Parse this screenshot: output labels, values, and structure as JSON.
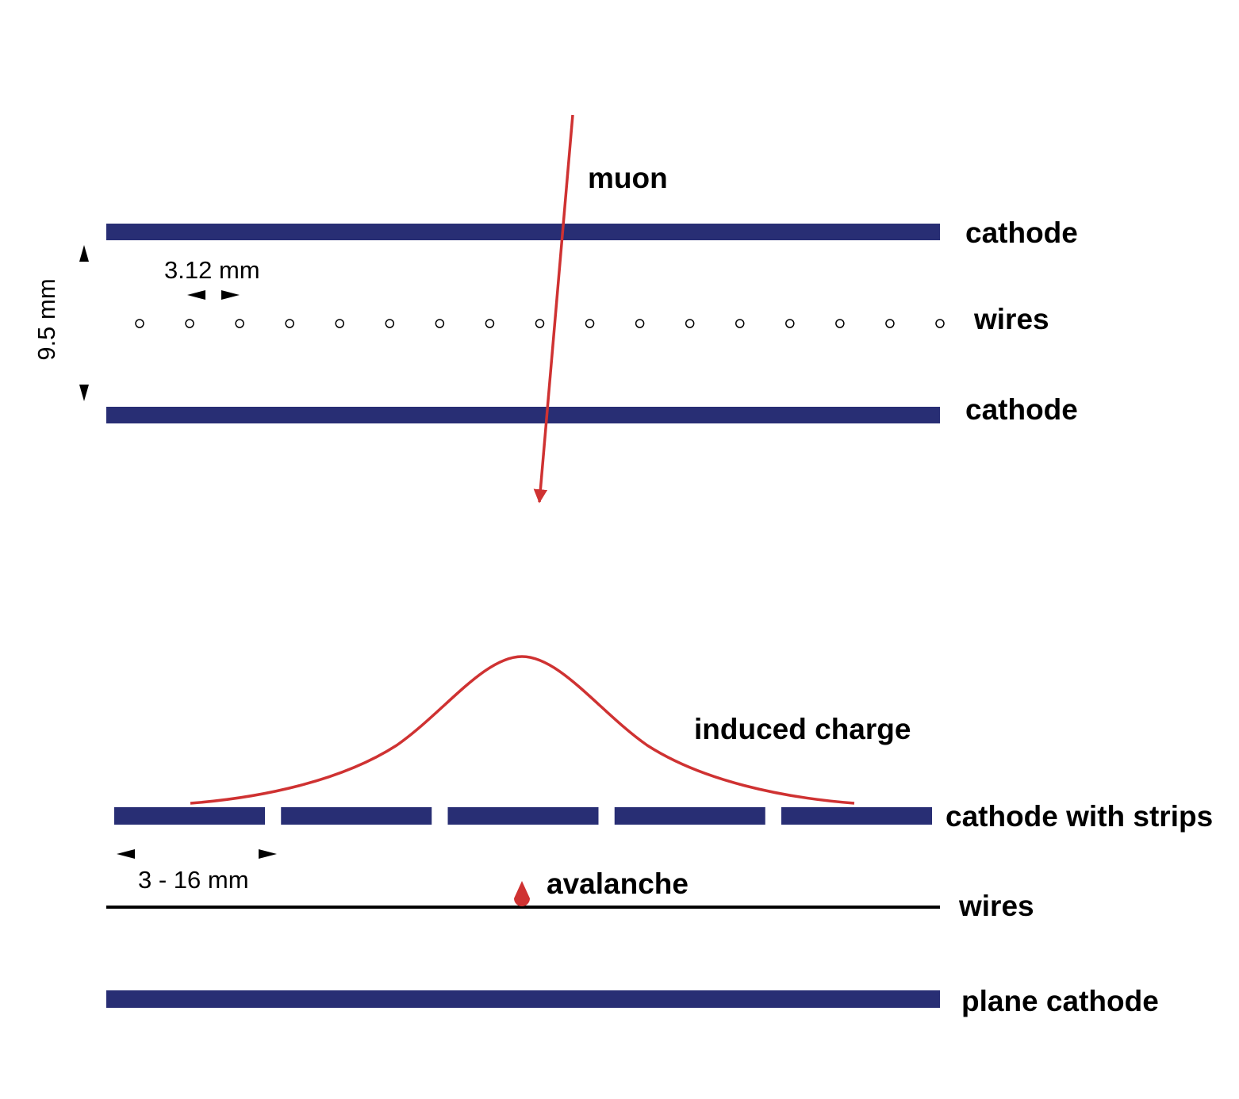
{
  "colors": {
    "cathode": "#282e74",
    "track": "#cf3232",
    "wire_line": "#000000"
  },
  "top_chamber": {
    "muon_label": "muon",
    "upper_cathode_label": "cathode",
    "wires_label": "wires",
    "lower_cathode_label": "cathode",
    "wire_pitch_label": "3.12 mm",
    "gap_label": "9.5 mm",
    "wire_count": 17
  },
  "bottom_chamber": {
    "induced_charge_label": "induced charge",
    "strips_cathode_label": "cathode with strips",
    "strip_count": 5,
    "strip_width_label": "3 - 16 mm",
    "avalanche_label": "avalanche",
    "wires_label": "wires",
    "plane_cathode_label": "plane cathode"
  }
}
